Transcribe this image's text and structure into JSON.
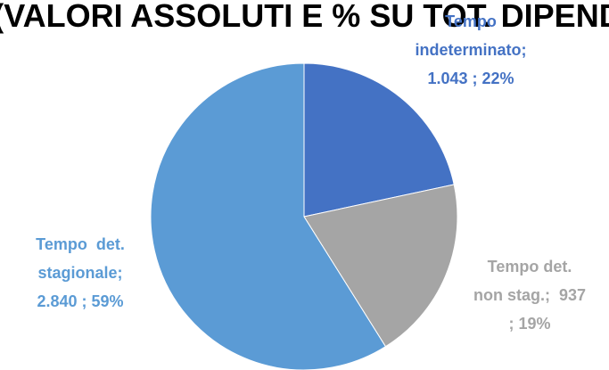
{
  "chart_data": {
    "type": "pie",
    "title": "(VALORI ASSOLUTI E % SU TOT. DIPEND",
    "slices": [
      {
        "name": "Tempo indeterminato",
        "value": 1043,
        "percent": 22,
        "color": "#4472C4",
        "label_color": "#4472C4",
        "label_lines": [
          "Tempo",
          "indeterminato;",
          "1.043 ; 22%"
        ]
      },
      {
        "name": "Tempo det. non stag.",
        "value": 937,
        "percent": 19,
        "color": "#A5A5A5",
        "label_color": "#A5A5A5",
        "label_lines": [
          "Tempo det.",
          "non stag.;  937",
          "; 19%"
        ]
      },
      {
        "name": "Tempo det. stagionale",
        "value": 2840,
        "percent": 59,
        "color": "#5B9BD5",
        "label_color": "#5B9BD5",
        "label_lines": [
          "Tempo  det.",
          "stagionale;",
          "2.840 ; 59%"
        ]
      }
    ]
  }
}
